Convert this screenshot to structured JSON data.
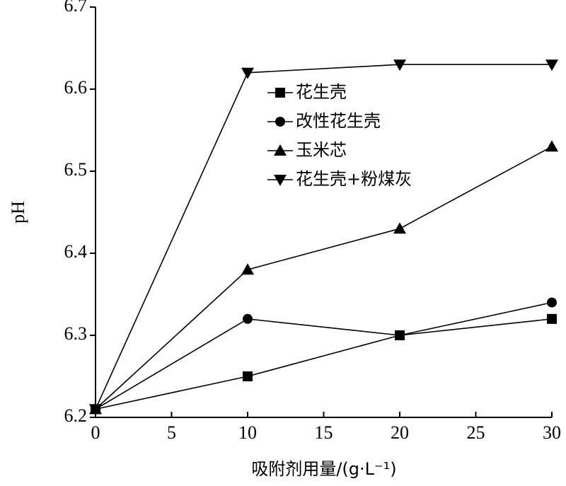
{
  "chart_data": {
    "type": "line",
    "x_label": "吸附剂用量/(g·L⁻¹)",
    "y_label": "pH",
    "x": [
      0,
      10,
      20,
      30
    ],
    "series": [
      {
        "name": "花生壳",
        "color": "#000000",
        "marker": "square",
        "values": [
          6.21,
          6.25,
          6.3,
          6.32
        ]
      },
      {
        "name": "改性花生壳",
        "color": "#000000",
        "marker": "circle",
        "values": [
          6.21,
          6.32,
          6.3,
          6.34
        ]
      },
      {
        "name": "玉米芯",
        "color": "#000000",
        "marker": "triangle-up",
        "values": [
          6.21,
          6.38,
          6.43,
          6.53
        ]
      },
      {
        "name": "花生壳+粉煤灰",
        "color": "#000000",
        "marker": "triangle-down",
        "values": [
          6.21,
          6.62,
          6.63,
          6.63
        ]
      }
    ],
    "xlim": [
      0,
      30
    ],
    "xticks": [
      0,
      5,
      10,
      15,
      20,
      25,
      30
    ],
    "ylim": [
      6.2,
      6.7
    ],
    "yticks": [
      6.2,
      6.3,
      6.4,
      6.5,
      6.6,
      6.7
    ],
    "grid": false,
    "legend": "upper left"
  }
}
